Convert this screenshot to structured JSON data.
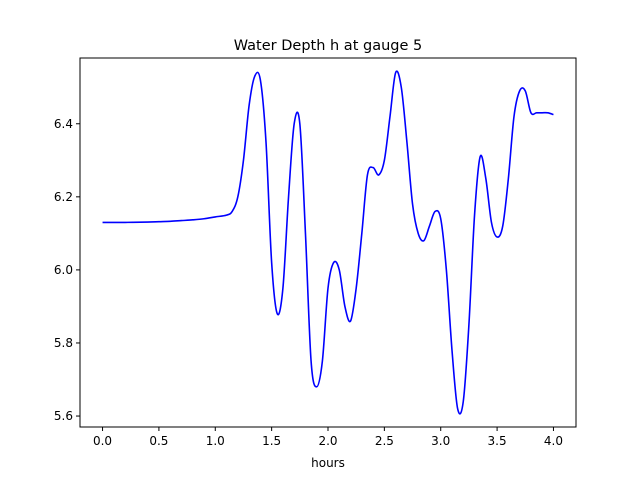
{
  "chart_data": {
    "type": "line",
    "title": "Water Depth h at gauge 5",
    "xlabel": "hours",
    "ylabel": "",
    "xlim": [
      -0.2,
      4.2
    ],
    "ylim": [
      5.57,
      6.58
    ],
    "xticks": [
      0.0,
      0.5,
      1.0,
      1.5,
      2.0,
      2.5,
      3.0,
      3.5,
      4.0
    ],
    "xtick_labels": [
      "0.0",
      "0.5",
      "1.0",
      "1.5",
      "2.0",
      "2.5",
      "3.0",
      "3.5",
      "4.0"
    ],
    "yticks": [
      5.6,
      5.8,
      6.0,
      6.2,
      6.4
    ],
    "ytick_labels": [
      "5.6",
      "5.8",
      "6.0",
      "6.2",
      "6.4"
    ],
    "grid": false,
    "series": [
      {
        "color": "#0000ff",
        "x": [
          0.0,
          0.2,
          0.4,
          0.5,
          0.6,
          0.7,
          0.8,
          0.9,
          1.0,
          1.1,
          1.15,
          1.2,
          1.25,
          1.3,
          1.35,
          1.4,
          1.45,
          1.5,
          1.55,
          1.6,
          1.65,
          1.7,
          1.75,
          1.8,
          1.85,
          1.9,
          1.95,
          2.0,
          2.05,
          2.1,
          2.15,
          2.2,
          2.25,
          2.3,
          2.35,
          2.4,
          2.45,
          2.5,
          2.55,
          2.6,
          2.65,
          2.7,
          2.75,
          2.8,
          2.85,
          2.9,
          2.95,
          3.0,
          3.05,
          3.1,
          3.15,
          3.2,
          3.25,
          3.3,
          3.35,
          3.4,
          3.45,
          3.5,
          3.55,
          3.6,
          3.65,
          3.7,
          3.75,
          3.8,
          3.85,
          3.9,
          3.95,
          4.0
        ],
        "y": [
          6.13,
          6.13,
          6.131,
          6.132,
          6.133,
          6.135,
          6.137,
          6.14,
          6.145,
          6.15,
          6.16,
          6.2,
          6.3,
          6.45,
          6.53,
          6.52,
          6.35,
          6.02,
          5.88,
          5.95,
          6.2,
          6.4,
          6.4,
          6.1,
          5.75,
          5.68,
          5.75,
          5.95,
          6.02,
          6.0,
          5.9,
          5.86,
          5.95,
          6.1,
          6.26,
          6.28,
          6.26,
          6.3,
          6.42,
          6.54,
          6.5,
          6.35,
          6.18,
          6.1,
          6.08,
          6.12,
          6.16,
          6.14,
          6.0,
          5.78,
          5.62,
          5.64,
          5.85,
          6.15,
          6.31,
          6.25,
          6.13,
          6.09,
          6.12,
          6.25,
          6.42,
          6.49,
          6.49,
          6.43,
          6.43,
          6.43,
          6.43,
          6.425
        ]
      }
    ]
  }
}
